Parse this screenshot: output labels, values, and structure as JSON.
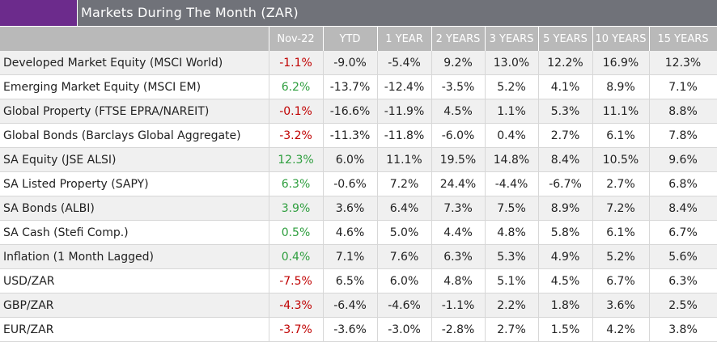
{
  "title": "Markets During The Month (ZAR)",
  "colors": {
    "brand": "#6c2b8c",
    "title_bar": "#707279",
    "header": "#b9b9b9",
    "negative": "#c00000",
    "positive": "#2e9e3e"
  },
  "columns": [
    "Nov-22",
    "YTD",
    "1 YEAR",
    "2 YEARS",
    "3 YEARS",
    "5 YEARS",
    "10 YEARS",
    "15 YEARS"
  ],
  "rows": [
    {
      "name": "Developed Market Equity (MSCI World)",
      "month_sign": "neg",
      "values": [
        "-1.1%",
        "-9.0%",
        "-5.4%",
        "9.2%",
        "13.0%",
        "12.2%",
        "16.9%",
        "12.3%"
      ]
    },
    {
      "name": "Emerging Market Equity (MSCI EM)",
      "month_sign": "pos",
      "values": [
        "6.2%",
        "-13.7%",
        "-12.4%",
        "-3.5%",
        "5.2%",
        "4.1%",
        "8.9%",
        "7.1%"
      ]
    },
    {
      "name": "Global Property (FTSE EPRA/NAREIT)",
      "month_sign": "neg",
      "values": [
        "-0.1%",
        "-16.6%",
        "-11.9%",
        "4.5%",
        "1.1%",
        "5.3%",
        "11.1%",
        "8.8%"
      ]
    },
    {
      "name": "Global Bonds (Barclays Global Aggregate)",
      "month_sign": "neg",
      "values": [
        "-3.2%",
        "-11.3%",
        "-11.8%",
        "-6.0%",
        "0.4%",
        "2.7%",
        "6.1%",
        "7.8%"
      ]
    },
    {
      "name": "SA Equity (JSE ALSI)",
      "month_sign": "pos",
      "values": [
        "12.3%",
        "6.0%",
        "11.1%",
        "19.5%",
        "14.8%",
        "8.4%",
        "10.5%",
        "9.6%"
      ]
    },
    {
      "name": "SA Listed Property (SAPY)",
      "month_sign": "pos",
      "values": [
        "6.3%",
        "-0.6%",
        "7.2%",
        "24.4%",
        "-4.4%",
        "-6.7%",
        "2.7%",
        "6.8%"
      ]
    },
    {
      "name": "SA Bonds (ALBI)",
      "month_sign": "pos",
      "values": [
        "3.9%",
        "3.6%",
        "6.4%",
        "7.3%",
        "7.5%",
        "8.9%",
        "7.2%",
        "8.4%"
      ]
    },
    {
      "name": "SA Cash (Stefi Comp.)",
      "month_sign": "pos",
      "values": [
        "0.5%",
        "4.6%",
        "5.0%",
        "4.4%",
        "4.8%",
        "5.8%",
        "6.1%",
        "6.7%"
      ]
    },
    {
      "name": "Inflation (1 Month Lagged)",
      "month_sign": "pos",
      "values": [
        "0.4%",
        "7.1%",
        "7.6%",
        "6.3%",
        "5.3%",
        "4.9%",
        "5.2%",
        "5.6%"
      ]
    },
    {
      "name": "USD/ZAR",
      "month_sign": "neg",
      "values": [
        "-7.5%",
        "6.5%",
        "6.0%",
        "4.8%",
        "5.1%",
        "4.5%",
        "6.7%",
        "6.3%"
      ]
    },
    {
      "name": "GBP/ZAR",
      "month_sign": "neg",
      "values": [
        "-4.3%",
        "-6.4%",
        "-4.6%",
        "-1.1%",
        "2.2%",
        "1.8%",
        "3.6%",
        "2.5%"
      ]
    },
    {
      "name": "EUR/ZAR",
      "month_sign": "neg",
      "values": [
        "-3.7%",
        "-3.6%",
        "-3.0%",
        "-2.8%",
        "2.7%",
        "1.5%",
        "4.2%",
        "3.8%"
      ]
    }
  ]
}
